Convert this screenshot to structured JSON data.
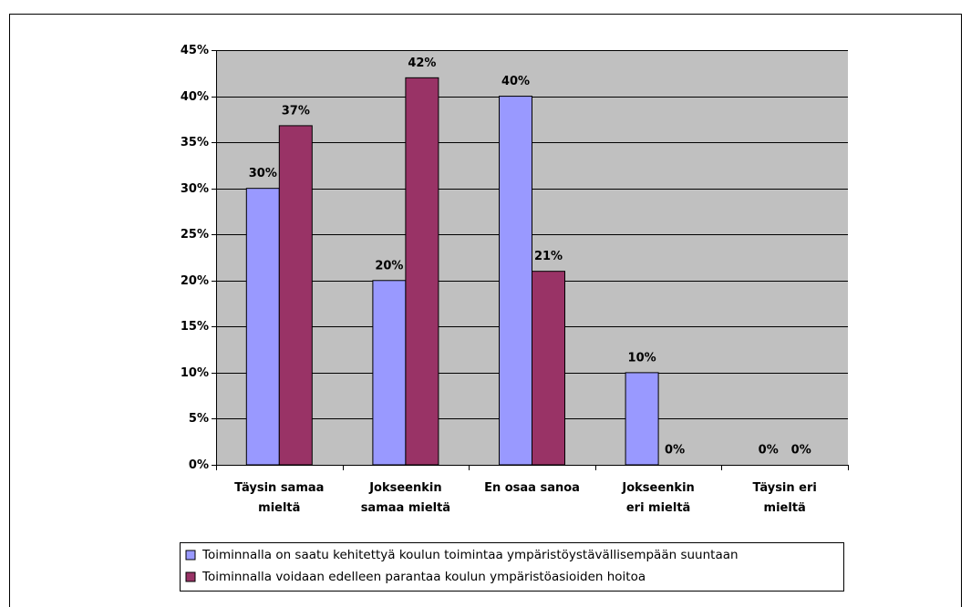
{
  "chart_data": {
    "type": "bar",
    "categories": [
      "Täysin samaa\nmieltä",
      "Jokseenkin\nsamaa mieltä",
      "En osaa sanoa",
      "Jokseenkin\neri mieltä",
      "Täysin eri\nmieltä"
    ],
    "series": [
      {
        "name": "Toiminnalla on saatu kehitettyä koulun toimintaa ympäristöystävällisempään suuntaan",
        "color": "#9999ff",
        "values": [
          30,
          20,
          40,
          10,
          0
        ],
        "value_labels": [
          "30%",
          "20%",
          "40%",
          "10%",
          "0%"
        ]
      },
      {
        "name": "Toiminnalla voidaan edelleen parantaa koulun ympäristöasioiden hoitoa",
        "color": "#993366",
        "values": [
          36.8,
          42,
          21,
          0,
          0
        ],
        "value_labels": [
          "37%",
          "42%",
          "21%",
          "0%",
          "0%"
        ]
      }
    ],
    "ylim": [
      0,
      45
    ],
    "yticks": [
      {
        "value": 0,
        "label": "0%"
      },
      {
        "value": 5,
        "label": "5%"
      },
      {
        "value": 10,
        "label": "10%"
      },
      {
        "value": 15,
        "label": "15%"
      },
      {
        "value": 20,
        "label": "20%"
      },
      {
        "value": 25,
        "label": "25%"
      },
      {
        "value": 30,
        "label": "30%"
      },
      {
        "value": 35,
        "label": "35%"
      },
      {
        "value": 40,
        "label": "40%"
      },
      {
        "value": 45,
        "label": "45%"
      }
    ],
    "grid": true,
    "plot_background": "#c0c0c0",
    "legend": "bottom"
  }
}
